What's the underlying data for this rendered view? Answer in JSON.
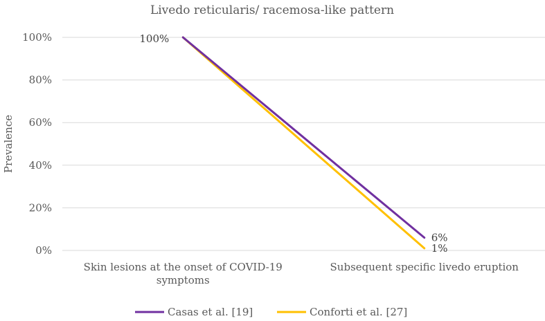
{
  "chart_data": {
    "type": "line",
    "title": "Livedo reticularis/ racemosa-like pattern",
    "ylabel": "Prevalence",
    "xlabel": "",
    "ylim": [
      0,
      100
    ],
    "yticks": [
      "0%",
      "20%",
      "40%",
      "60%",
      "80%",
      "100%"
    ],
    "categories": [
      [
        "Skin lesions at the onset of COVID-19",
        "symptoms"
      ],
      [
        "Subsequent specific livedo eruption"
      ]
    ],
    "series": [
      {
        "name": "Casas et al. [19]",
        "values": [
          100,
          6
        ],
        "labels": [
          "",
          "6%"
        ],
        "color": "#7030A0"
      },
      {
        "name": "Conforti et al. [27]",
        "values": [
          100,
          1
        ],
        "labels": [
          "100%",
          "1%"
        ],
        "color": "#FFC000"
      }
    ],
    "grid": true,
    "legend_position": "bottom"
  }
}
